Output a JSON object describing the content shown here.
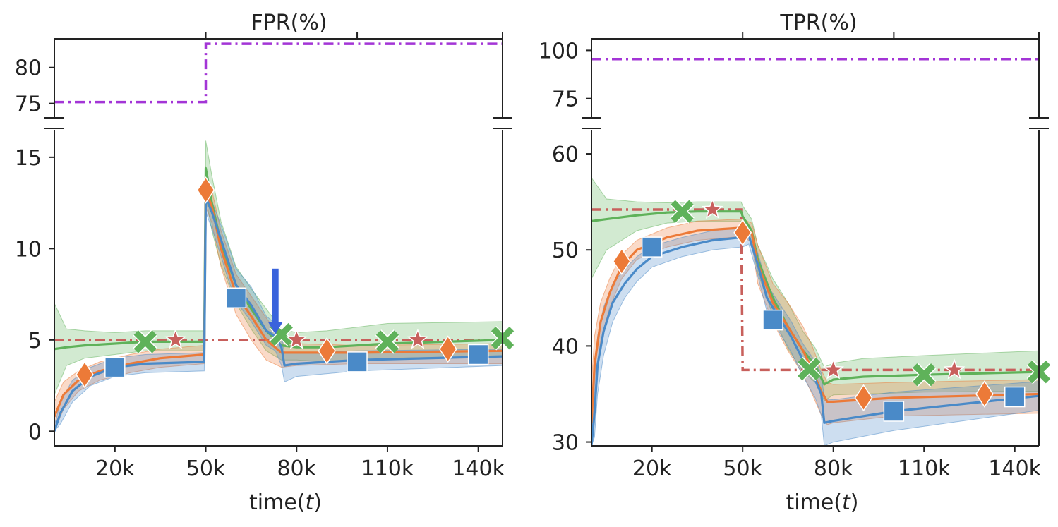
{
  "chart_data": [
    {
      "type": "line",
      "title": "FPR(%)",
      "xlabel_prefix": "time(",
      "xlabel_var": "t",
      "xlabel_suffix": ")",
      "xlim": [
        0,
        148
      ],
      "xticks": [
        20,
        50,
        80,
        110,
        140
      ],
      "xtick_labels": [
        "20k",
        "50k",
        "80k",
        "110k",
        "140k"
      ],
      "top_ylim": [
        73,
        84
      ],
      "top_yticks": [
        75,
        80
      ],
      "top_ytick_labels": [
        "75",
        "80"
      ],
      "bottom_ylim": [
        -0.8,
        16.5
      ],
      "bottom_yticks": [
        0,
        5,
        10,
        15
      ],
      "bottom_ytick_labels": [
        "0",
        "5",
        "10",
        "15"
      ],
      "colors": {
        "purple": "#a335d6",
        "red": "#c8605c",
        "green": "#5fb25a",
        "orange": "#ec7a38",
        "blue": "#4a8ac8",
        "arrow": "#3a63dc"
      },
      "purple_line": {
        "x": [
          0,
          50,
          50,
          148
        ],
        "y": [
          75.2,
          75.2,
          83.3,
          83.3
        ]
      },
      "red_line": {
        "x": [
          0,
          148
        ],
        "y": [
          5.0,
          5.0
        ]
      },
      "green_line": {
        "x": [
          0,
          4,
          10,
          20,
          30,
          49.5,
          50,
          52,
          55,
          60,
          65,
          70,
          75,
          80,
          90,
          110,
          148
        ],
        "y": [
          4.5,
          4.6,
          4.7,
          4.8,
          4.9,
          4.9,
          14.4,
          12.5,
          10.3,
          8.0,
          6.7,
          5.5,
          4.7,
          4.6,
          4.6,
          4.8,
          5.0
        ]
      },
      "green_band": {
        "upper": [
          7.0,
          5.6,
          5.5,
          5.4,
          5.5,
          5.5,
          15.9,
          14.0,
          11.5,
          9.0,
          7.8,
          6.7,
          5.6,
          5.4,
          5.5,
          5.9,
          6.0
        ],
        "lower": [
          2.0,
          3.6,
          4.0,
          4.2,
          4.4,
          4.4,
          12.8,
          11.0,
          9.1,
          7.0,
          5.6,
          4.4,
          3.9,
          3.9,
          3.8,
          4.0,
          4.1
        ]
      },
      "orange_line": {
        "x": [
          0,
          3,
          8,
          15,
          25,
          35,
          49.5,
          50,
          52,
          55,
          60,
          65,
          70,
          75,
          80,
          100,
          148
        ],
        "y": [
          0.8,
          2.0,
          2.8,
          3.3,
          3.7,
          4.0,
          4.2,
          13.2,
          12.3,
          10.0,
          7.5,
          6.3,
          5.0,
          4.3,
          4.3,
          4.3,
          4.4
        ]
      },
      "orange_band": {
        "upper": [
          1.6,
          2.7,
          3.3,
          3.8,
          4.2,
          4.5,
          4.7,
          14.0,
          13.2,
          11.0,
          8.6,
          7.4,
          6.2,
          5.1,
          4.8,
          4.7,
          4.8
        ],
        "lower": [
          0.0,
          1.2,
          2.2,
          2.8,
          3.2,
          3.5,
          3.7,
          12.3,
          11.4,
          9.0,
          6.4,
          5.0,
          3.9,
          3.5,
          3.6,
          3.7,
          3.7
        ]
      },
      "blue_line": {
        "x": [
          0,
          2,
          6,
          12,
          20,
          30,
          49.5,
          50,
          52,
          55,
          57,
          60,
          65,
          70,
          73,
          75,
          76,
          80,
          100,
          148
        ],
        "y": [
          0.0,
          1.0,
          2.2,
          3.0,
          3.5,
          3.7,
          3.8,
          12.8,
          12.0,
          10.5,
          9.5,
          8.0,
          6.9,
          5.5,
          5.2,
          4.6,
          3.6,
          3.7,
          3.9,
          4.1
        ]
      },
      "blue_band": {
        "upper": [
          0.3,
          1.6,
          2.8,
          3.5,
          4.0,
          4.2,
          4.3,
          13.3,
          12.6,
          11.3,
          10.4,
          8.9,
          7.9,
          6.3,
          5.9,
          5.3,
          4.3,
          4.3,
          4.4,
          4.5
        ],
        "lower": [
          0.0,
          0.4,
          1.6,
          2.5,
          3.0,
          3.2,
          3.3,
          12.0,
          11.1,
          9.6,
          8.5,
          7.1,
          6.0,
          4.7,
          4.4,
          3.6,
          2.7,
          3.0,
          3.3,
          3.6
        ]
      },
      "markers": {
        "green_x": [
          [
            30,
            4.9
          ],
          [
            75,
            5.3
          ],
          [
            110,
            4.9
          ],
          [
            148,
            5.1
          ]
        ],
        "red_star": [
          [
            40,
            5.0
          ],
          [
            80,
            5.0
          ],
          [
            120,
            5.0
          ]
        ],
        "orange_diamond": [
          [
            10,
            3.1
          ],
          [
            50,
            13.2
          ],
          [
            90,
            4.4
          ],
          [
            130,
            4.5
          ]
        ],
        "blue_square": [
          [
            20,
            3.5
          ],
          [
            60,
            7.3
          ],
          [
            100,
            3.8
          ],
          [
            140,
            4.2
          ]
        ]
      },
      "arrow": {
        "x": 73,
        "y_top": 8.9,
        "y_tip": 5.3
      }
    },
    {
      "type": "line",
      "title": "TPR(%)",
      "xlabel_prefix": "time(",
      "xlabel_var": "t",
      "xlabel_suffix": ")",
      "xlim": [
        0,
        148
      ],
      "xticks": [
        20,
        50,
        80,
        110,
        140
      ],
      "xtick_labels": [
        "20k",
        "50k",
        "80k",
        "110k",
        "140k"
      ],
      "top_ylim": [
        65,
        106
      ],
      "top_yticks": [
        75,
        100
      ],
      "top_ytick_labels": [
        "75",
        "100"
      ],
      "bottom_ylim": [
        29.6,
        62.5
      ],
      "bottom_yticks": [
        30,
        40,
        50,
        60
      ],
      "bottom_ytick_labels": [
        "30",
        "40",
        "50",
        "60"
      ],
      "colors": {
        "purple": "#a335d6",
        "red": "#c8605c",
        "green": "#5fb25a",
        "orange": "#ec7a38",
        "blue": "#4a8ac8"
      },
      "purple_line": {
        "x": [
          0,
          148
        ],
        "y": [
          95.5,
          95.5
        ]
      },
      "red_line": {
        "x": [
          0,
          49.5,
          50,
          148
        ],
        "y": [
          54.2,
          54.2,
          37.5,
          37.5
        ]
      },
      "green_line": {
        "x": [
          0,
          5,
          15,
          25,
          35,
          49.5,
          50,
          53,
          55,
          60,
          65,
          70,
          74,
          77,
          80,
          90,
          110,
          148
        ],
        "y": [
          53.0,
          53.2,
          53.6,
          53.9,
          54.0,
          54.0,
          53.5,
          52.0,
          49.0,
          45.0,
          42.0,
          39.5,
          38.0,
          36.0,
          36.5,
          36.8,
          37.0,
          37.3
        ]
      },
      "green_band": {
        "upper": [
          57.5,
          55.3,
          55.0,
          54.9,
          55.0,
          55.0,
          54.6,
          53.2,
          50.5,
          47.0,
          44.5,
          41.5,
          39.8,
          37.8,
          38.2,
          38.7,
          39.0,
          39.5
        ],
        "lower": [
          47.0,
          50.0,
          52.0,
          52.8,
          53.0,
          53.0,
          52.4,
          50.8,
          47.6,
          43.2,
          39.7,
          37.3,
          36.2,
          34.3,
          34.9,
          35.0,
          35.2,
          35.3
        ]
      },
      "orange_line": {
        "x": [
          0,
          1,
          3,
          6,
          10,
          15,
          25,
          35,
          49.5,
          50,
          53,
          55,
          60,
          65,
          70,
          73,
          76,
          78,
          80,
          100,
          148
        ],
        "y": [
          32.0,
          38.0,
          42.5,
          45.5,
          48.3,
          50.0,
          51.3,
          52.0,
          52.3,
          52.3,
          51.8,
          48.5,
          44.5,
          42.0,
          39.5,
          37.5,
          35.3,
          34.2,
          34.2,
          34.6,
          35.0
        ]
      },
      "orange_band": {
        "upper": [
          36.0,
          41.0,
          44.5,
          47.0,
          49.5,
          51.0,
          52.3,
          53.0,
          53.2,
          53.2,
          52.8,
          50.5,
          46.5,
          44.5,
          42.0,
          40.0,
          37.5,
          36.2,
          36.0,
          36.2,
          36.5
        ],
        "lower": [
          30.0,
          35.0,
          40.5,
          44.0,
          47.0,
          49.0,
          50.3,
          51.0,
          51.4,
          51.4,
          50.8,
          46.5,
          42.5,
          39.5,
          37.0,
          35.0,
          32.8,
          31.8,
          32.0,
          32.7,
          33.0
        ]
      },
      "blue_line": {
        "x": [
          0,
          1,
          2,
          4,
          7,
          11,
          15,
          20,
          30,
          40,
          49.5,
          50,
          52,
          55,
          58,
          62,
          66,
          70,
          74,
          76,
          77,
          80,
          100,
          148
        ],
        "y": [
          29.6,
          33.0,
          38.0,
          41.5,
          44.5,
          46.5,
          48.0,
          49.3,
          50.3,
          51.0,
          51.3,
          51.3,
          51.5,
          48.5,
          45.0,
          43.0,
          41.0,
          38.5,
          36.5,
          35.0,
          32.0,
          32.2,
          33.2,
          34.8
        ]
      },
      "blue_band": {
        "upper": [
          31.0,
          36.0,
          41.0,
          44.0,
          46.5,
          48.0,
          49.3,
          50.4,
          51.3,
          52.0,
          52.3,
          52.3,
          52.4,
          49.7,
          46.4,
          44.5,
          42.6,
          40.2,
          38.4,
          37.2,
          34.5,
          34.4,
          35.2,
          36.3
        ],
        "lower": [
          29.6,
          30.5,
          35.0,
          39.0,
          42.5,
          45.0,
          46.7,
          48.2,
          49.3,
          50.0,
          50.3,
          50.3,
          50.6,
          47.3,
          43.6,
          41.5,
          39.4,
          36.8,
          34.6,
          32.8,
          29.6,
          30.0,
          31.2,
          33.3
        ]
      },
      "markers": {
        "green_x": [
          [
            30,
            54.0
          ],
          [
            72,
            37.6
          ],
          [
            110,
            37.0
          ],
          [
            148,
            37.3
          ]
        ],
        "red_star": [
          [
            40,
            54.2
          ],
          [
            80,
            37.5
          ],
          [
            120,
            37.5
          ]
        ],
        "orange_diamond": [
          [
            10,
            48.8
          ],
          [
            50,
            51.8
          ],
          [
            90,
            34.6
          ],
          [
            130,
            35.0
          ]
        ],
        "blue_square": [
          [
            20,
            50.3
          ],
          [
            60,
            42.7
          ],
          [
            100,
            33.2
          ],
          [
            140,
            34.7
          ]
        ]
      }
    }
  ]
}
